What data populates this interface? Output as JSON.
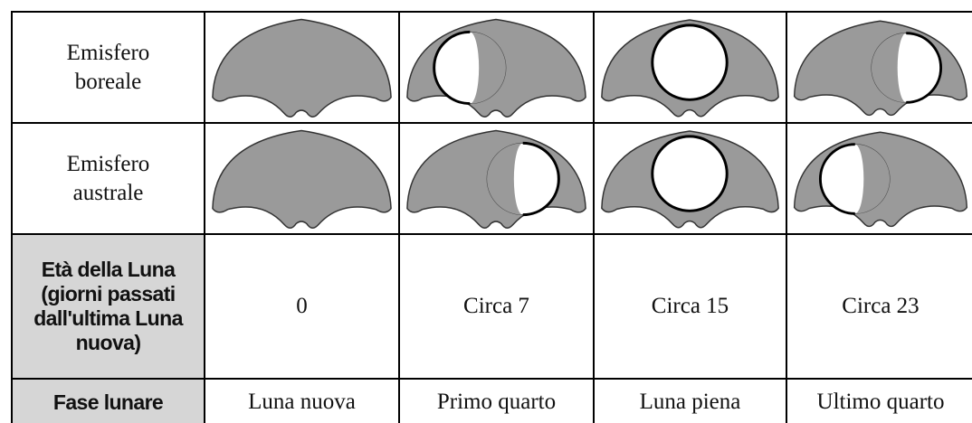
{
  "table": {
    "rows": [
      {
        "header": "Emisfero boreale"
      },
      {
        "header": "Emisfero australe"
      },
      {
        "header": "Età della Luna (giorni passati dall'ultima Luna nuova)",
        "cells": [
          "0",
          "Circa 7",
          "Circa 15",
          "Circa 23"
        ]
      },
      {
        "header": "Fase lunare",
        "cells": [
          "Luna nuova",
          "Primo quarto",
          "Luna piena",
          "Ultimo quarto"
        ]
      }
    ]
  }
}
